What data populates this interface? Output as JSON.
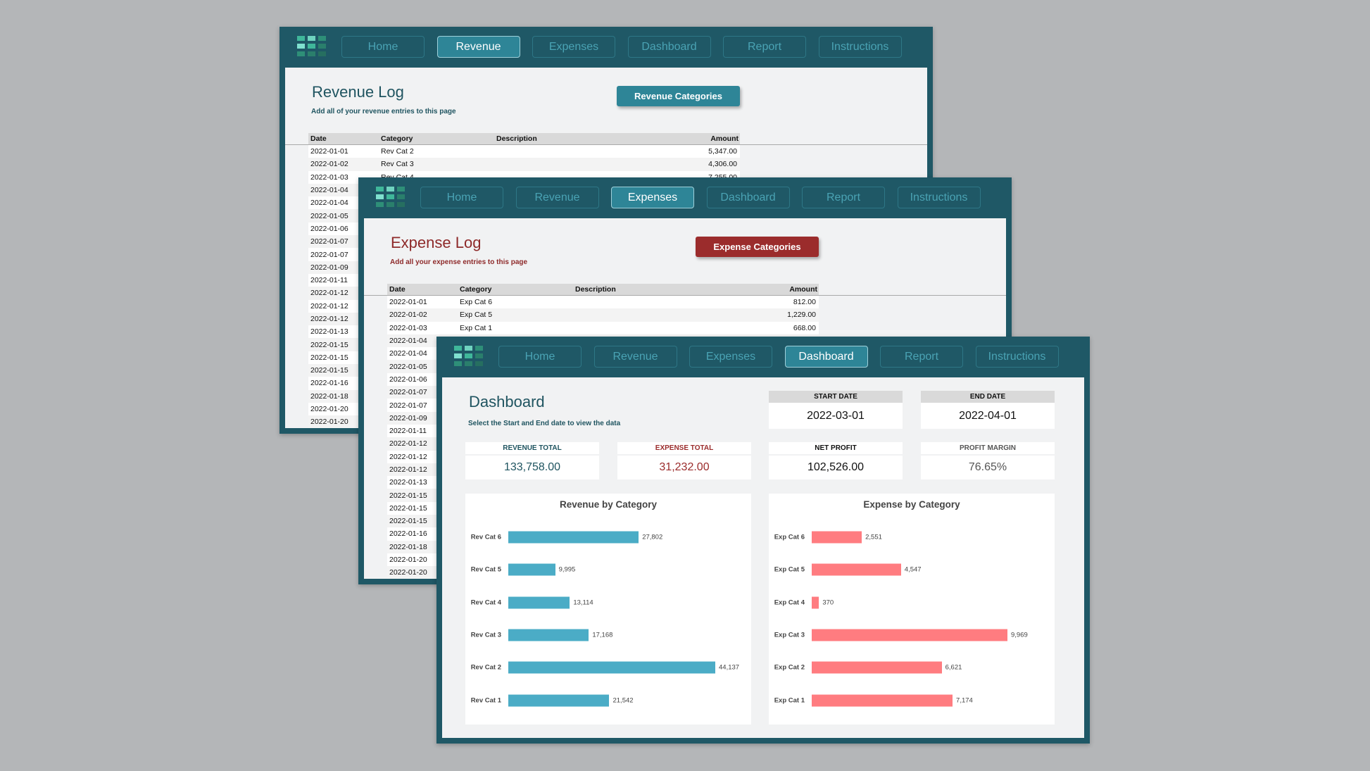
{
  "nav": [
    "Home",
    "Revenue",
    "Expenses",
    "Dashboard",
    "Report",
    "Instructions"
  ],
  "colors": {
    "frame": "#1f5866",
    "revenue_bar": "#4bacc6",
    "expense_bar": "#ff7c80",
    "revenue_text": "#1f5460",
    "expense_text": "#8e2a2a",
    "revenue_button": "#2e8597",
    "expense_button": "#9b2c2c"
  },
  "revenue": {
    "active_tab": 1,
    "title": "Revenue Log",
    "subtitle": "Add all of your revenue entries to this page",
    "button": "Revenue Categories",
    "columns": [
      "Date",
      "Category",
      "Description",
      "Amount"
    ],
    "rows": [
      [
        "2022-01-01",
        "Rev Cat 2",
        "",
        "5,347.00"
      ],
      [
        "2022-01-02",
        "Rev Cat 3",
        "",
        "4,306.00"
      ],
      [
        "2022-01-03",
        "Rev Cat 4",
        "",
        "7,255.00"
      ],
      [
        "2022-01-04",
        "",
        "",
        ""
      ],
      [
        "2022-01-04",
        "",
        "",
        ""
      ],
      [
        "2022-01-05",
        "",
        "",
        ""
      ],
      [
        "2022-01-06",
        "",
        "",
        ""
      ],
      [
        "2022-01-07",
        "",
        "",
        ""
      ],
      [
        "2022-01-07",
        "",
        "",
        ""
      ],
      [
        "2022-01-09",
        "",
        "",
        ""
      ],
      [
        "2022-01-11",
        "",
        "",
        ""
      ],
      [
        "2022-01-12",
        "",
        "",
        ""
      ],
      [
        "2022-01-12",
        "",
        "",
        ""
      ],
      [
        "2022-01-12",
        "",
        "",
        ""
      ],
      [
        "2022-01-13",
        "",
        "",
        ""
      ],
      [
        "2022-01-15",
        "",
        "",
        ""
      ],
      [
        "2022-01-15",
        "",
        "",
        ""
      ],
      [
        "2022-01-15",
        "",
        "",
        ""
      ],
      [
        "2022-01-16",
        "",
        "",
        ""
      ],
      [
        "2022-01-18",
        "",
        "",
        ""
      ],
      [
        "2022-01-20",
        "",
        "",
        ""
      ],
      [
        "2022-01-20",
        "",
        "",
        ""
      ]
    ]
  },
  "expenses": {
    "active_tab": 2,
    "title": "Expense Log",
    "subtitle": "Add all your expense entries to this page",
    "button": "Expense Categories",
    "columns": [
      "Date",
      "Category",
      "Description",
      "Amount"
    ],
    "rows": [
      [
        "2022-01-01",
        "Exp Cat 6",
        "",
        "812.00"
      ],
      [
        "2022-01-02",
        "Exp Cat 5",
        "",
        "1,229.00"
      ],
      [
        "2022-01-03",
        "Exp Cat 1",
        "",
        "668.00"
      ],
      [
        "2022-01-04",
        "",
        "",
        ""
      ],
      [
        "2022-01-04",
        "",
        "",
        ""
      ],
      [
        "2022-01-05",
        "",
        "",
        ""
      ],
      [
        "2022-01-06",
        "",
        "",
        ""
      ],
      [
        "2022-01-07",
        "",
        "",
        ""
      ],
      [
        "2022-01-07",
        "",
        "",
        ""
      ],
      [
        "2022-01-09",
        "",
        "",
        ""
      ],
      [
        "2022-01-11",
        "",
        "",
        ""
      ],
      [
        "2022-01-12",
        "",
        "",
        ""
      ],
      [
        "2022-01-12",
        "",
        "",
        ""
      ],
      [
        "2022-01-12",
        "",
        "",
        ""
      ],
      [
        "2022-01-13",
        "",
        "",
        ""
      ],
      [
        "2022-01-15",
        "",
        "",
        ""
      ],
      [
        "2022-01-15",
        "",
        "",
        ""
      ],
      [
        "2022-01-15",
        "",
        "",
        ""
      ],
      [
        "2022-01-16",
        "",
        "",
        ""
      ],
      [
        "2022-01-18",
        "",
        "",
        ""
      ],
      [
        "2022-01-20",
        "",
        "",
        ""
      ],
      [
        "2022-01-20",
        "",
        "",
        ""
      ]
    ]
  },
  "dashboard": {
    "active_tab": 3,
    "title": "Dashboard",
    "subtitle": "Select the Start and End date to view the data",
    "start_date": {
      "label": "START DATE",
      "value": "2022-03-01"
    },
    "end_date": {
      "label": "END DATE",
      "value": "2022-04-01"
    },
    "kpis": [
      {
        "label": "REVENUE TOTAL",
        "value": "133,758.00",
        "color": "#1f5460"
      },
      {
        "label": "EXPENSE TOTAL",
        "value": "31,232.00",
        "color": "#9b2c2c"
      },
      {
        "label": "NET PROFIT",
        "value": "102,526.00",
        "color": "#111111"
      },
      {
        "label": "PROFIT MARGIN",
        "value": "76.65%",
        "color": "#555555"
      }
    ]
  },
  "chart_data": [
    {
      "type": "bar",
      "orientation": "horizontal",
      "title": "Revenue by Category",
      "categories": [
        "Rev Cat 6",
        "Rev Cat 5",
        "Rev Cat 4",
        "Rev Cat 3",
        "Rev Cat 2",
        "Rev Cat 1"
      ],
      "values": [
        27802,
        9995,
        13114,
        17168,
        44137,
        21542
      ],
      "data_labels": [
        "27,802",
        "9,995",
        "13,114",
        "17,168",
        "44,137",
        "21,542"
      ],
      "color": "#4bacc6",
      "grid": false,
      "legend": "none"
    },
    {
      "type": "bar",
      "orientation": "horizontal",
      "title": "Expense by Category",
      "categories": [
        "Exp Cat 6",
        "Exp Cat 5",
        "Exp Cat 4",
        "Exp Cat 3",
        "Exp Cat 2",
        "Exp Cat 1"
      ],
      "values": [
        2551,
        4547,
        370,
        9969,
        6621,
        7174
      ],
      "data_labels": [
        "2,551",
        "4,547",
        "370",
        "9,969",
        "6,621",
        "7,174"
      ],
      "color": "#ff7c80",
      "grid": false,
      "legend": "none"
    }
  ]
}
